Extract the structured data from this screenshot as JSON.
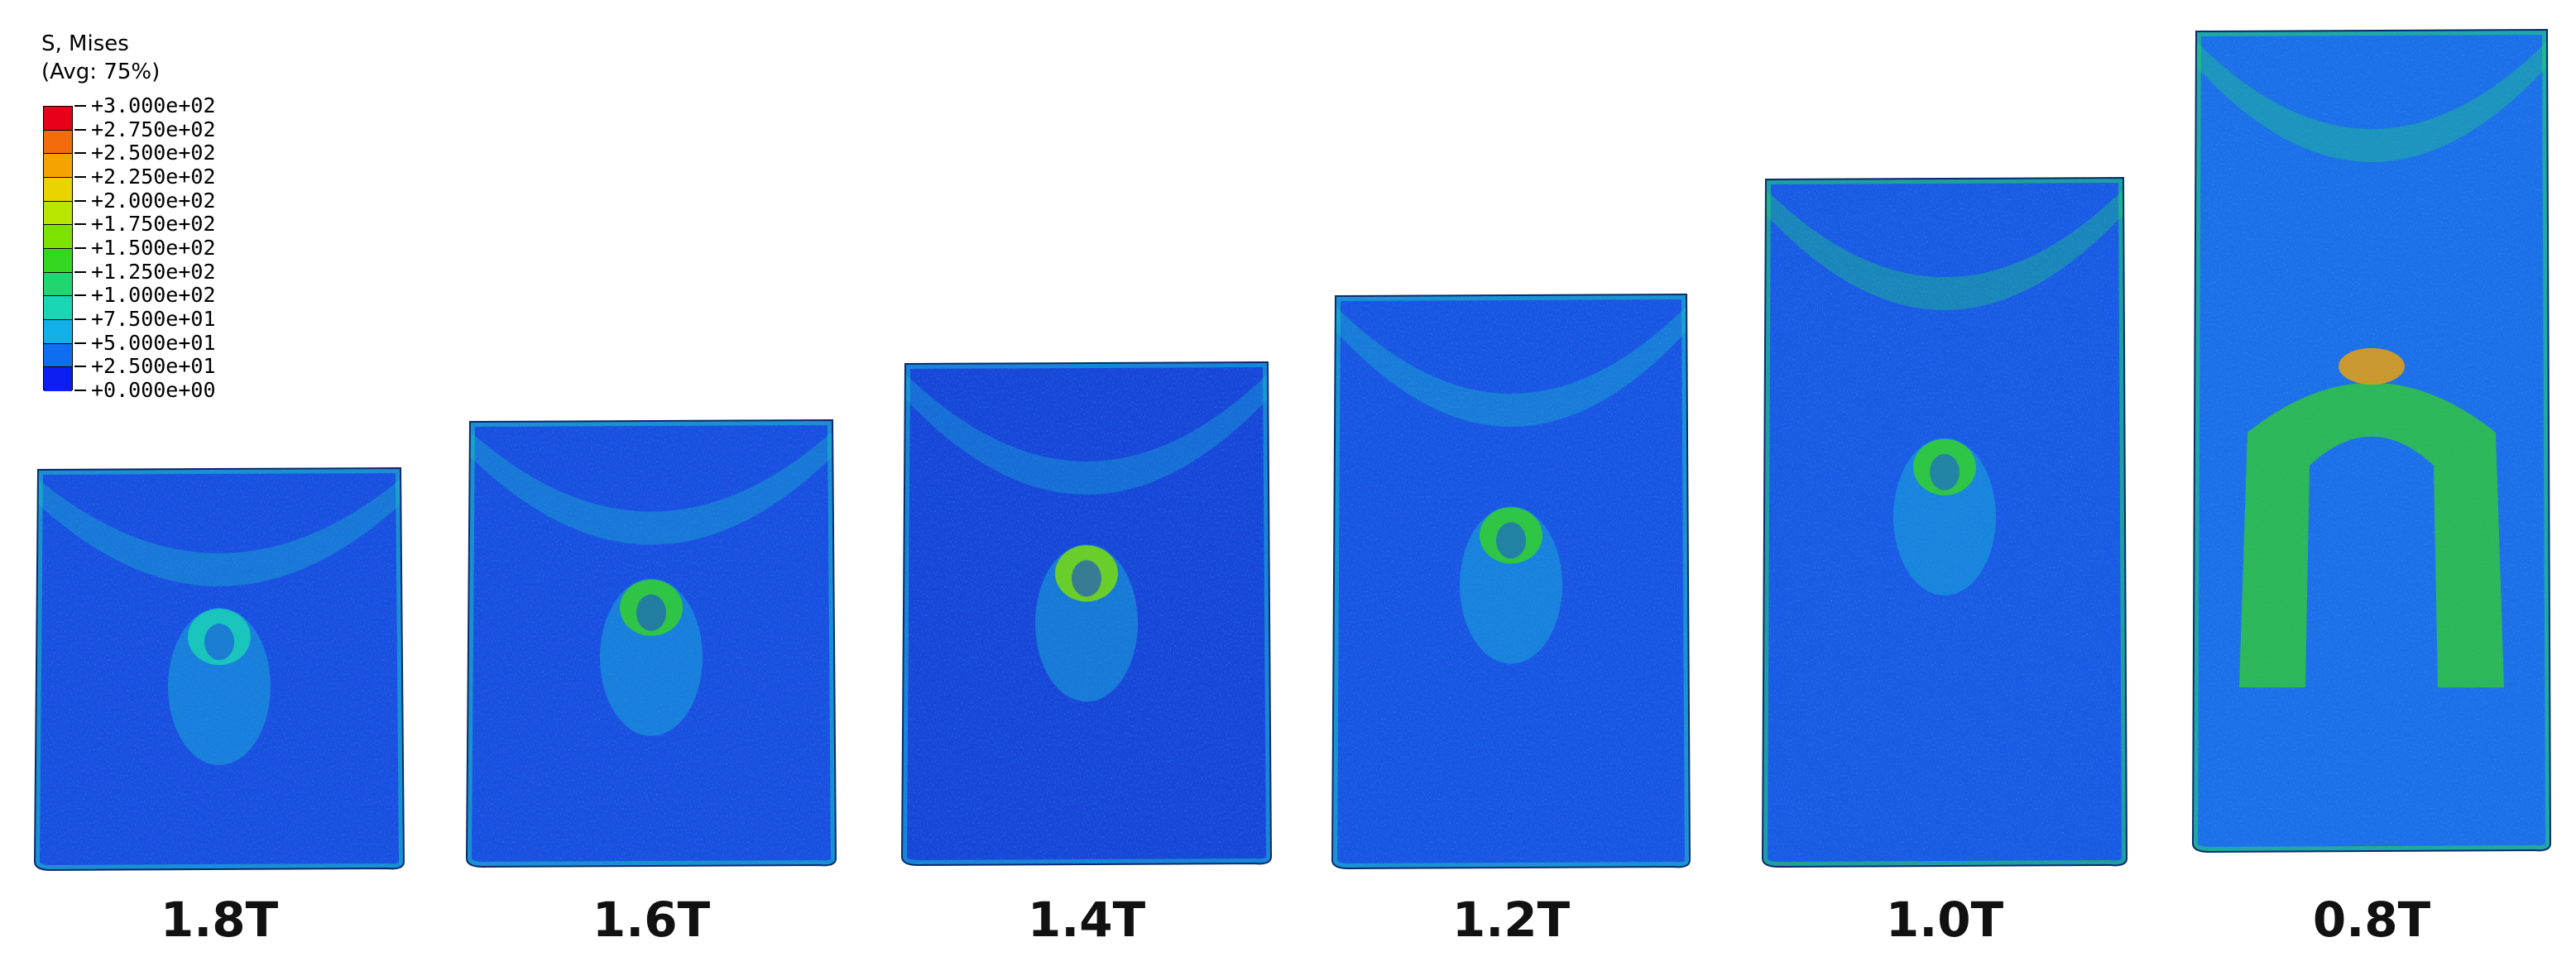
{
  "legend": {
    "title_line1": "S, Mises",
    "title_line2": "(Avg: 75%)",
    "values": [
      "+3.000e+02",
      "+2.750e+02",
      "+2.500e+02",
      "+2.250e+02",
      "+2.000e+02",
      "+1.750e+02",
      "+1.500e+02",
      "+1.250e+02",
      "+1.000e+02",
      "+7.500e+01",
      "+5.000e+01",
      "+2.500e+01",
      "+0.000e+00"
    ],
    "colors": [
      "#e8001a",
      "#f26b0c",
      "#f5a300",
      "#e8d400",
      "#b9e600",
      "#7ee200",
      "#35d61f",
      "#20d670",
      "#19d6b4",
      "#12b0e8",
      "#0f6ef0",
      "#0c1ef2"
    ]
  },
  "specimens": [
    {
      "label": "1.8T",
      "colors": {
        "body": "#1a4fe0",
        "edge": "#19c3c8",
        "hot": "#19d6b4"
      }
    },
    {
      "label": "1.6T",
      "colors": {
        "body": "#1a4fe0",
        "edge": "#19c3c8",
        "hot": "#35d61f"
      }
    },
    {
      "label": "1.4T",
      "colors": {
        "body": "#1846d8",
        "edge": "#19b7d8",
        "hot": "#7ee200"
      }
    },
    {
      "label": "1.2T",
      "colors": {
        "body": "#1a55e2",
        "edge": "#19c3c8",
        "hot": "#35d61f"
      }
    },
    {
      "label": "1.0T",
      "colors": {
        "body": "#1a5ae4",
        "edge": "#20d670",
        "hot": "#35d61f"
      }
    },
    {
      "label": "0.8T",
      "colors": {
        "body": "#1d6fe8",
        "edge": "#20d670",
        "hot": "#f5a300"
      }
    }
  ]
}
